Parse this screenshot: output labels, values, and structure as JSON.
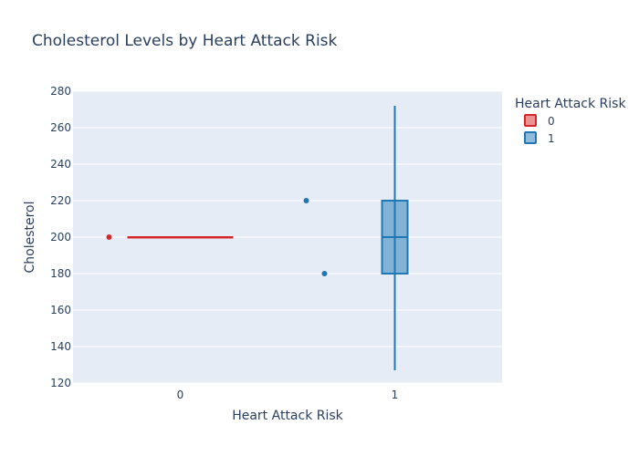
{
  "chart_data": {
    "type": "box",
    "title": "Cholesterol Levels by Heart Attack Risk",
    "xlabel": "Heart Attack Risk",
    "ylabel": "Cholesterol",
    "categories": [
      "0",
      "1"
    ],
    "ylim": [
      120,
      280
    ],
    "yticks": [
      120,
      140,
      160,
      180,
      200,
      220,
      240,
      260,
      280
    ],
    "grid": true,
    "legend": {
      "title": "Heart Attack Risk",
      "placement": "top-right"
    },
    "series": [
      {
        "name": "0",
        "category": "0",
        "color": "#d62728",
        "fill": "rgba(214,39,40,0.5)",
        "q1": 200,
        "median": 200,
        "q3": 200,
        "lowerfence": 200,
        "upperfence": 200,
        "outliers": [
          200
        ]
      },
      {
        "name": "1",
        "category": "1",
        "color": "#1f77b4",
        "fill": "rgba(31,119,180,0.5)",
        "q1": 180,
        "median": 200,
        "q3": 220,
        "lowerfence": 127,
        "upperfence": 272,
        "outliers": [
          220,
          180
        ]
      }
    ]
  },
  "colors": {
    "plot_bg": "#e5ecf6",
    "grid": "#ffffff",
    "text": "#2a3f5f"
  }
}
